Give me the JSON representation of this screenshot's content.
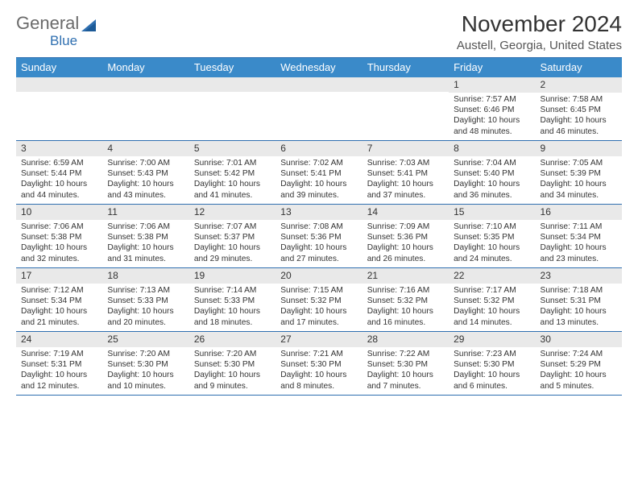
{
  "logo": {
    "word1": "General",
    "word2": "Blue"
  },
  "title": "November 2024",
  "subtitle": "Austell, Georgia, United States",
  "colors": {
    "header_bg": "#3a8ac9",
    "rule": "#2f6fb0",
    "daynum_bg": "#e9e9e9",
    "text": "#333333",
    "logo_gray": "#6a6a6a",
    "logo_blue": "#2f6fb0"
  },
  "day_headers": [
    "Sunday",
    "Monday",
    "Tuesday",
    "Wednesday",
    "Thursday",
    "Friday",
    "Saturday"
  ],
  "weeks": [
    [
      {
        "empty": true
      },
      {
        "empty": true
      },
      {
        "empty": true
      },
      {
        "empty": true
      },
      {
        "empty": true
      },
      {
        "day": "1",
        "sunrise": "Sunrise: 7:57 AM",
        "sunset": "Sunset: 6:46 PM",
        "daylight": "Daylight: 10 hours and 48 minutes."
      },
      {
        "day": "2",
        "sunrise": "Sunrise: 7:58 AM",
        "sunset": "Sunset: 6:45 PM",
        "daylight": "Daylight: 10 hours and 46 minutes."
      }
    ],
    [
      {
        "day": "3",
        "sunrise": "Sunrise: 6:59 AM",
        "sunset": "Sunset: 5:44 PM",
        "daylight": "Daylight: 10 hours and 44 minutes."
      },
      {
        "day": "4",
        "sunrise": "Sunrise: 7:00 AM",
        "sunset": "Sunset: 5:43 PM",
        "daylight": "Daylight: 10 hours and 43 minutes."
      },
      {
        "day": "5",
        "sunrise": "Sunrise: 7:01 AM",
        "sunset": "Sunset: 5:42 PM",
        "daylight": "Daylight: 10 hours and 41 minutes."
      },
      {
        "day": "6",
        "sunrise": "Sunrise: 7:02 AM",
        "sunset": "Sunset: 5:41 PM",
        "daylight": "Daylight: 10 hours and 39 minutes."
      },
      {
        "day": "7",
        "sunrise": "Sunrise: 7:03 AM",
        "sunset": "Sunset: 5:41 PM",
        "daylight": "Daylight: 10 hours and 37 minutes."
      },
      {
        "day": "8",
        "sunrise": "Sunrise: 7:04 AM",
        "sunset": "Sunset: 5:40 PM",
        "daylight": "Daylight: 10 hours and 36 minutes."
      },
      {
        "day": "9",
        "sunrise": "Sunrise: 7:05 AM",
        "sunset": "Sunset: 5:39 PM",
        "daylight": "Daylight: 10 hours and 34 minutes."
      }
    ],
    [
      {
        "day": "10",
        "sunrise": "Sunrise: 7:06 AM",
        "sunset": "Sunset: 5:38 PM",
        "daylight": "Daylight: 10 hours and 32 minutes."
      },
      {
        "day": "11",
        "sunrise": "Sunrise: 7:06 AM",
        "sunset": "Sunset: 5:38 PM",
        "daylight": "Daylight: 10 hours and 31 minutes."
      },
      {
        "day": "12",
        "sunrise": "Sunrise: 7:07 AM",
        "sunset": "Sunset: 5:37 PM",
        "daylight": "Daylight: 10 hours and 29 minutes."
      },
      {
        "day": "13",
        "sunrise": "Sunrise: 7:08 AM",
        "sunset": "Sunset: 5:36 PM",
        "daylight": "Daylight: 10 hours and 27 minutes."
      },
      {
        "day": "14",
        "sunrise": "Sunrise: 7:09 AM",
        "sunset": "Sunset: 5:36 PM",
        "daylight": "Daylight: 10 hours and 26 minutes."
      },
      {
        "day": "15",
        "sunrise": "Sunrise: 7:10 AM",
        "sunset": "Sunset: 5:35 PM",
        "daylight": "Daylight: 10 hours and 24 minutes."
      },
      {
        "day": "16",
        "sunrise": "Sunrise: 7:11 AM",
        "sunset": "Sunset: 5:34 PM",
        "daylight": "Daylight: 10 hours and 23 minutes."
      }
    ],
    [
      {
        "day": "17",
        "sunrise": "Sunrise: 7:12 AM",
        "sunset": "Sunset: 5:34 PM",
        "daylight": "Daylight: 10 hours and 21 minutes."
      },
      {
        "day": "18",
        "sunrise": "Sunrise: 7:13 AM",
        "sunset": "Sunset: 5:33 PM",
        "daylight": "Daylight: 10 hours and 20 minutes."
      },
      {
        "day": "19",
        "sunrise": "Sunrise: 7:14 AM",
        "sunset": "Sunset: 5:33 PM",
        "daylight": "Daylight: 10 hours and 18 minutes."
      },
      {
        "day": "20",
        "sunrise": "Sunrise: 7:15 AM",
        "sunset": "Sunset: 5:32 PM",
        "daylight": "Daylight: 10 hours and 17 minutes."
      },
      {
        "day": "21",
        "sunrise": "Sunrise: 7:16 AM",
        "sunset": "Sunset: 5:32 PM",
        "daylight": "Daylight: 10 hours and 16 minutes."
      },
      {
        "day": "22",
        "sunrise": "Sunrise: 7:17 AM",
        "sunset": "Sunset: 5:32 PM",
        "daylight": "Daylight: 10 hours and 14 minutes."
      },
      {
        "day": "23",
        "sunrise": "Sunrise: 7:18 AM",
        "sunset": "Sunset: 5:31 PM",
        "daylight": "Daylight: 10 hours and 13 minutes."
      }
    ],
    [
      {
        "day": "24",
        "sunrise": "Sunrise: 7:19 AM",
        "sunset": "Sunset: 5:31 PM",
        "daylight": "Daylight: 10 hours and 12 minutes."
      },
      {
        "day": "25",
        "sunrise": "Sunrise: 7:20 AM",
        "sunset": "Sunset: 5:30 PM",
        "daylight": "Daylight: 10 hours and 10 minutes."
      },
      {
        "day": "26",
        "sunrise": "Sunrise: 7:20 AM",
        "sunset": "Sunset: 5:30 PM",
        "daylight": "Daylight: 10 hours and 9 minutes."
      },
      {
        "day": "27",
        "sunrise": "Sunrise: 7:21 AM",
        "sunset": "Sunset: 5:30 PM",
        "daylight": "Daylight: 10 hours and 8 minutes."
      },
      {
        "day": "28",
        "sunrise": "Sunrise: 7:22 AM",
        "sunset": "Sunset: 5:30 PM",
        "daylight": "Daylight: 10 hours and 7 minutes."
      },
      {
        "day": "29",
        "sunrise": "Sunrise: 7:23 AM",
        "sunset": "Sunset: 5:30 PM",
        "daylight": "Daylight: 10 hours and 6 minutes."
      },
      {
        "day": "30",
        "sunrise": "Sunrise: 7:24 AM",
        "sunset": "Sunset: 5:29 PM",
        "daylight": "Daylight: 10 hours and 5 minutes."
      }
    ]
  ]
}
